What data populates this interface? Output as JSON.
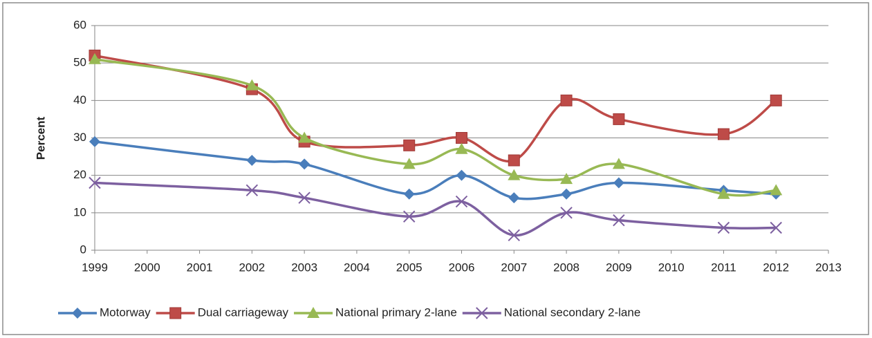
{
  "chart_data": {
    "type": "line",
    "ylabel": "Percent",
    "xlim": [
      1999,
      2013
    ],
    "xticks": [
      1999,
      2000,
      2001,
      2002,
      2003,
      2004,
      2005,
      2006,
      2007,
      2008,
      2009,
      2010,
      2011,
      2012,
      2013
    ],
    "ylim": [
      0,
      60
    ],
    "yticks": [
      0,
      10,
      20,
      30,
      40,
      50,
      60
    ],
    "grid": true,
    "legend": "bottom",
    "x": [
      1999,
      2002,
      2003,
      2005,
      2006,
      2007,
      2008,
      2009,
      2011,
      2012
    ],
    "series": [
      {
        "name": "Motorway",
        "color": "#4a7ebb",
        "marker": "diamond",
        "values": [
          29,
          24,
          23,
          15,
          20,
          14,
          15,
          18,
          16,
          15
        ]
      },
      {
        "name": "Dual carriageway",
        "color": "#be4b48",
        "marker": "square",
        "values": [
          52,
          43,
          29,
          28,
          30,
          24,
          40,
          35,
          31,
          40
        ]
      },
      {
        "name": "National primary 2-lane",
        "color": "#98b954",
        "marker": "triangle",
        "values": [
          51,
          44,
          30,
          23,
          27,
          20,
          19,
          23,
          15,
          16
        ]
      },
      {
        "name": "National secondary 2-lane",
        "color": "#7d60a0",
        "marker": "x",
        "values": [
          18,
          16,
          14,
          9,
          13,
          4,
          10,
          8,
          6,
          6
        ]
      }
    ]
  }
}
